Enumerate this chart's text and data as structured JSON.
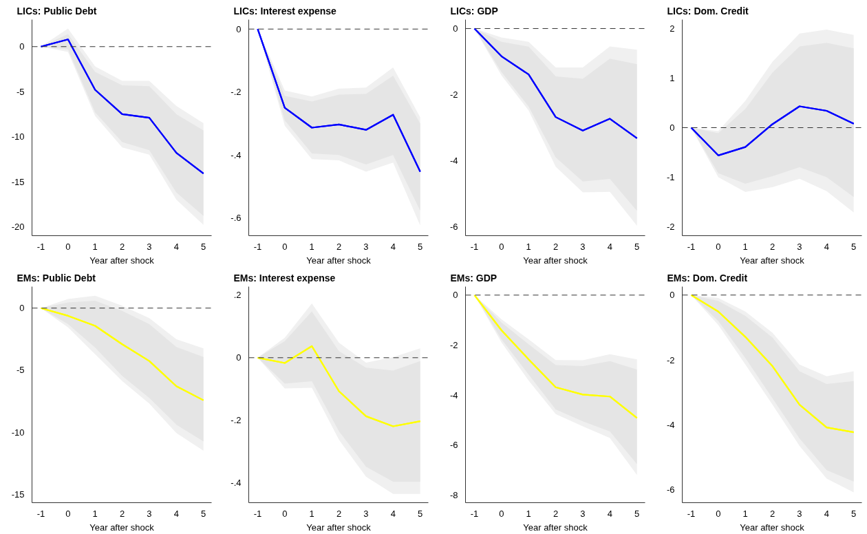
{
  "chart_data": [
    {
      "type": "line",
      "title": "LICs: Public Debt",
      "xlabel": "Year after shock",
      "x": [
        -1,
        0,
        1,
        2,
        3,
        4,
        5
      ],
      "xlim": [
        -1.33,
        5.3
      ],
      "xticks": [
        -1,
        0,
        1,
        2,
        3,
        4,
        5
      ],
      "ylim": [
        -21,
        3
      ],
      "yticks": [
        0,
        -5,
        -10,
        -15,
        -20
      ],
      "grid": false,
      "line_style": "solid",
      "marker": "none",
      "ref_lines": [
        {
          "axis": "y",
          "value": 0,
          "color": "#333333",
          "line_style": "dashed"
        }
      ],
      "series": [
        {
          "color": "#0000ff",
          "values": [
            0,
            0.8,
            -4.8,
            -7.5,
            -7.9,
            -11.8,
            -14.1
          ],
          "lower": [
            0,
            -0.6,
            -7.7,
            -11.2,
            -12.0,
            -17.0,
            -19.8
          ],
          "upper": [
            0,
            2.0,
            -2.2,
            -3.8,
            -3.8,
            -6.6,
            -8.5
          ]
        },
        {
          "color": "#0000ff",
          "values": [
            0,
            0.8,
            -4.8,
            -7.5,
            -7.9,
            -11.8,
            -14.1
          ],
          "lower": [
            0,
            -0.3,
            -7.3,
            -10.6,
            -11.5,
            -16.2,
            -18.8
          ],
          "upper": [
            0,
            1.4,
            -2.8,
            -4.3,
            -4.4,
            -7.5,
            -9.3
          ]
        }
      ]
    },
    {
      "type": "line",
      "title": "LICs: Interest expense",
      "xlabel": "Year after shock",
      "x": [
        -1,
        0,
        1,
        2,
        3,
        4,
        5
      ],
      "xlim": [
        -1.33,
        5.3
      ],
      "xticks": [
        -1,
        0,
        1,
        2,
        3,
        4,
        5
      ],
      "ylim": [
        -0.656,
        0.03
      ],
      "yticks": [
        0,
        {
          "value": -0.2,
          "label": "-.2"
        },
        {
          "value": -0.4,
          "label": "-.4"
        },
        {
          "value": -0.6,
          "label": "-.6"
        }
      ],
      "grid": false,
      "line_style": "solid",
      "marker": "none",
      "ref_lines": [
        {
          "axis": "y",
          "value": 0,
          "color": "#333333",
          "line_style": "dashed"
        }
      ],
      "series": [
        {
          "color": "#0000ff",
          "values": [
            0,
            -0.25,
            -0.313,
            -0.303,
            -0.32,
            -0.272,
            -0.453
          ],
          "lower": [
            0,
            -0.307,
            -0.413,
            -0.417,
            -0.453,
            -0.424,
            -0.624
          ],
          "upper": [
            0,
            -0.195,
            -0.214,
            -0.189,
            -0.186,
            -0.122,
            -0.28
          ]
        },
        {
          "color": "#0000ff",
          "values": [
            0,
            -0.25,
            -0.313,
            -0.303,
            -0.32,
            -0.272,
            -0.453
          ],
          "lower": [
            0,
            -0.29,
            -0.395,
            -0.4,
            -0.43,
            -0.4,
            -0.577
          ],
          "upper": [
            0,
            -0.212,
            -0.23,
            -0.208,
            -0.206,
            -0.148,
            -0.3
          ]
        }
      ]
    },
    {
      "type": "line",
      "title": "LICs: GDP",
      "xlabel": "Year after shock",
      "x": [
        -1,
        0,
        1,
        2,
        3,
        4,
        5
      ],
      "xlim": [
        -1.33,
        5.3
      ],
      "xticks": [
        -1,
        0,
        1,
        2,
        3,
        4,
        5
      ],
      "ylim": [
        -6.27,
        0.27
      ],
      "yticks": [
        0,
        -2,
        -4,
        -6
      ],
      "grid": false,
      "line_style": "solid",
      "marker": "none",
      "ref_lines": [
        {
          "axis": "y",
          "value": 0,
          "color": "#333333",
          "line_style": "dashed"
        }
      ],
      "series": [
        {
          "color": "#0000ff",
          "values": [
            0,
            -0.84,
            -1.39,
            -2.68,
            -3.09,
            -2.73,
            -3.32
          ],
          "lower": [
            0,
            -1.42,
            -2.48,
            -4.18,
            -4.96,
            -4.94,
            -5.97
          ],
          "upper": [
            0,
            -0.27,
            -0.4,
            -1.18,
            -1.18,
            -0.54,
            -0.64
          ]
        },
        {
          "color": "#0000ff",
          "values": [
            0,
            -0.84,
            -1.39,
            -2.68,
            -3.09,
            -2.73,
            -3.32
          ],
          "lower": [
            0,
            -1.32,
            -2.36,
            -3.9,
            -4.63,
            -4.55,
            -5.52
          ],
          "upper": [
            0,
            -0.4,
            -0.55,
            -1.45,
            -1.52,
            -0.91,
            -1.08
          ]
        }
      ]
    },
    {
      "type": "line",
      "title": "LICs: Dom. Credit",
      "xlabel": "Year after shock",
      "x": [
        -1,
        0,
        1,
        2,
        3,
        4,
        5
      ],
      "xlim": [
        -1.33,
        5.3
      ],
      "xticks": [
        -1,
        0,
        1,
        2,
        3,
        4,
        5
      ],
      "ylim": [
        -2.18,
        2.18
      ],
      "yticks": [
        2,
        1,
        0,
        -1,
        -2
      ],
      "grid": false,
      "line_style": "solid",
      "marker": "none",
      "ref_lines": [
        {
          "axis": "y",
          "value": 0,
          "color": "#333333",
          "line_style": "dashed"
        }
      ],
      "series": [
        {
          "color": "#0000ff",
          "values": [
            0,
            -0.56,
            -0.39,
            0.07,
            0.43,
            0.34,
            0.08
          ],
          "lower": [
            0,
            -1.0,
            -1.3,
            -1.2,
            -1.03,
            -1.28,
            -1.71
          ],
          "upper": [
            0,
            -0.07,
            0.54,
            1.33,
            1.9,
            1.98,
            1.87
          ]
        },
        {
          "color": "#0000ff",
          "values": [
            0,
            -0.56,
            -0.39,
            0.07,
            0.43,
            0.34,
            0.08
          ],
          "lower": [
            0,
            -0.92,
            -1.13,
            -0.98,
            -0.8,
            -1.0,
            -1.4
          ],
          "upper": [
            0,
            -0.11,
            0.38,
            1.11,
            1.64,
            1.71,
            1.6
          ]
        }
      ]
    },
    {
      "type": "line",
      "title": "EMs: Public Debt",
      "xlabel": "Year after shock",
      "x": [
        -1,
        0,
        1,
        2,
        3,
        4,
        5
      ],
      "xlim": [
        -1.33,
        5.3
      ],
      "xticks": [
        -1,
        0,
        1,
        2,
        3,
        4,
        5
      ],
      "ylim": [
        -15.67,
        1.73
      ],
      "yticks": [
        0,
        -5,
        -10,
        -15
      ],
      "grid": false,
      "line_style": "solid",
      "marker": "none",
      "ref_lines": [
        {
          "axis": "y",
          "value": 0,
          "color": "#333333",
          "line_style": "dashed"
        }
      ],
      "series": [
        {
          "color": "#ffff00",
          "values": [
            0,
            -0.62,
            -1.43,
            -2.91,
            -4.26,
            -6.29,
            -7.42
          ],
          "lower": [
            0,
            -1.56,
            -3.72,
            -5.88,
            -7.69,
            -10.06,
            -11.49
          ],
          "upper": [
            0,
            0.73,
            1.0,
            0.19,
            -0.81,
            -2.51,
            -3.24
          ]
        },
        {
          "color": "#ffff00",
          "values": [
            0,
            -0.62,
            -1.43,
            -2.91,
            -4.26,
            -6.29,
            -7.42
          ],
          "lower": [
            0,
            -1.29,
            -3.18,
            -5.46,
            -7.23,
            -9.39,
            -10.74
          ],
          "upper": [
            0,
            0.46,
            0.59,
            -0.22,
            -1.29,
            -3.13,
            -3.94
          ]
        }
      ]
    },
    {
      "type": "line",
      "title": "EMs: Interest expense",
      "xlabel": "Year after shock",
      "x": [
        -1,
        0,
        1,
        2,
        3,
        4,
        5
      ],
      "xlim": [
        -1.33,
        5.3
      ],
      "xticks": [
        -1,
        0,
        1,
        2,
        3,
        4,
        5
      ],
      "ylim": [
        -0.463,
        0.227
      ],
      "yticks": [
        {
          "value": 0.2,
          "label": ".2"
        },
        0,
        {
          "value": -0.2,
          "label": "-.2"
        },
        {
          "value": -0.4,
          "label": "-.4"
        }
      ],
      "grid": false,
      "line_style": "solid",
      "marker": "none",
      "ref_lines": [
        {
          "axis": "y",
          "value": 0,
          "color": "#333333",
          "line_style": "dashed"
        }
      ],
      "series": [
        {
          "color": "#ffff00",
          "values": [
            0,
            -0.017,
            0.037,
            -0.107,
            -0.187,
            -0.219,
            -0.203
          ],
          "lower": [
            0,
            -0.098,
            -0.096,
            -0.262,
            -0.38,
            -0.435,
            -0.435
          ],
          "upper": [
            0,
            0.064,
            0.173,
            0.048,
            -0.016,
            0.002,
            0.03
          ]
        },
        {
          "color": "#ffff00",
          "values": [
            0,
            -0.017,
            0.037,
            -0.107,
            -0.187,
            -0.219,
            -0.203
          ],
          "lower": [
            0,
            -0.083,
            -0.075,
            -0.235,
            -0.348,
            -0.396,
            -0.396
          ],
          "upper": [
            0,
            0.053,
            0.148,
            0.021,
            -0.032,
            -0.041,
            -0.011
          ]
        }
      ]
    },
    {
      "type": "line",
      "title": "EMs: GDP",
      "xlabel": "Year after shock",
      "x": [
        -1,
        0,
        1,
        2,
        3,
        4,
        5
      ],
      "xlim": [
        -1.33,
        5.3
      ],
      "xticks": [
        -1,
        0,
        1,
        2,
        3,
        4,
        5
      ],
      "ylim": [
        -8.31,
        0.34
      ],
      "yticks": [
        0,
        -2,
        -4,
        -6,
        -8
      ],
      "grid": false,
      "line_style": "solid",
      "marker": "none",
      "ref_lines": [
        {
          "axis": "y",
          "value": 0,
          "color": "#333333",
          "line_style": "dashed"
        }
      ],
      "series": [
        {
          "color": "#ffff00",
          "values": [
            0,
            -1.41,
            -2.57,
            -3.69,
            -3.98,
            -4.06,
            -4.92
          ],
          "lower": [
            0,
            -1.9,
            -3.42,
            -4.76,
            -5.25,
            -5.72,
            -7.2
          ],
          "upper": [
            0,
            -0.97,
            -1.77,
            -2.6,
            -2.61,
            -2.37,
            -2.57
          ]
        },
        {
          "color": "#ffff00",
          "values": [
            0,
            -1.41,
            -2.57,
            -3.69,
            -3.98,
            -4.06,
            -4.92
          ],
          "lower": [
            0,
            -1.77,
            -3.18,
            -4.58,
            -5.05,
            -5.46,
            -6.77
          ],
          "upper": [
            0,
            -1.1,
            -1.97,
            -2.8,
            -2.84,
            -2.64,
            -2.98
          ]
        }
      ]
    },
    {
      "type": "line",
      "title": "EMs: Dom. Credit",
      "xlabel": "Year after shock",
      "x": [
        -1,
        0,
        1,
        2,
        3,
        4,
        5
      ],
      "xlim": [
        -1.33,
        5.3
      ],
      "xticks": [
        -1,
        0,
        1,
        2,
        3,
        4,
        5
      ],
      "ylim": [
        -6.4,
        0.26
      ],
      "yticks": [
        0,
        -2,
        -4,
        -6
      ],
      "grid": false,
      "line_style": "solid",
      "marker": "none",
      "ref_lines": [
        {
          "axis": "y",
          "value": 0,
          "color": "#333333",
          "line_style": "dashed"
        }
      ],
      "series": [
        {
          "color": "#ffff00",
          "values": [
            0,
            -0.51,
            -1.29,
            -2.19,
            -3.38,
            -4.08,
            -4.23
          ],
          "lower": [
            0,
            -0.92,
            -2.14,
            -3.38,
            -4.65,
            -5.66,
            -6.08
          ],
          "upper": [
            0,
            -0.09,
            -0.51,
            -1.16,
            -2.14,
            -2.5,
            -2.35
          ]
        },
        {
          "color": "#ffff00",
          "values": [
            0,
            -0.51,
            -1.29,
            -2.19,
            -3.38,
            -4.08,
            -4.23
          ],
          "lower": [
            0,
            -0.8,
            -1.94,
            -3.18,
            -4.42,
            -5.4,
            -5.75
          ],
          "upper": [
            0,
            -0.18,
            -0.64,
            -1.31,
            -2.35,
            -2.74,
            -2.65
          ]
        }
      ]
    }
  ]
}
